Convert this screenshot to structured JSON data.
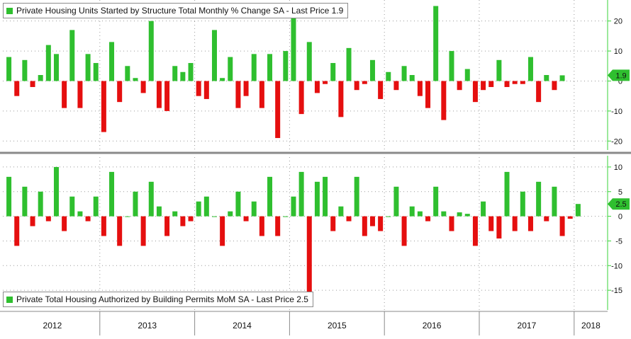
{
  "colors": {
    "positive": "#2fbf2f",
    "negative": "#e50f0f",
    "grid": "#9a9a9a",
    "axis": "#39d339",
    "separator": "#8a8a8a"
  },
  "chart_data": [
    {
      "type": "bar",
      "legend_title": "Private Housing Units Started by Structure Total Monthly % Change SA - Last Price 1.9",
      "last_value_label": "1.9",
      "last_value": 1.9,
      "ylim": [
        -23,
        27
      ],
      "yticks": [
        20,
        10,
        0,
        -10,
        -20
      ],
      "ytick_labels": [
        "20",
        "10",
        "0",
        "-10",
        "-20"
      ],
      "grid": true,
      "legend_position": "top-left",
      "x_start": "2012-01",
      "values": [
        8,
        -5,
        7,
        -2,
        2,
        12,
        9,
        -9,
        17,
        -9,
        9,
        6,
        -17,
        13,
        -7,
        5,
        1,
        -4,
        20,
        -9,
        -10,
        5,
        3,
        6,
        -5,
        -6,
        17,
        1,
        8,
        -9,
        -5,
        9,
        -9,
        9,
        -19,
        10,
        22,
        -11,
        13,
        -4,
        -1,
        6,
        -12,
        11,
        -3,
        -1,
        7,
        -6,
        3,
        -3,
        5,
        2,
        -5,
        -9,
        25,
        -13,
        10,
        -3,
        4,
        -7,
        -3,
        -2,
        7,
        -2,
        -1,
        -1,
        8,
        -7,
        2,
        -3,
        1.9
      ]
    },
    {
      "type": "bar",
      "legend_title": "Private Total Housing Authorized by Building Permits MoM SA - Last Price 2.5",
      "last_value_label": "2.5",
      "last_value": 2.5,
      "ylim": [
        -19,
        12
      ],
      "yticks": [
        10,
        5,
        0,
        -5,
        -10,
        -15
      ],
      "ytick_labels": [
        "10",
        "5",
        "0",
        "-5",
        "-10",
        "-15"
      ],
      "grid": true,
      "legend_position": "bottom-left",
      "x_start": "2012-01",
      "values": [
        8,
        -6,
        6,
        -2,
        5,
        -1,
        10,
        -3,
        4,
        1,
        -1,
        4,
        -4,
        9,
        -6,
        0,
        5,
        -6,
        7,
        2,
        -4,
        1,
        -2,
        -1,
        3,
        4,
        0,
        -6,
        1,
        5,
        -1,
        3,
        -4,
        8,
        -4,
        0,
        4,
        9,
        -18,
        7,
        8,
        -3,
        2,
        -1,
        8,
        -4,
        -2,
        -3,
        0,
        6,
        -6,
        2,
        1,
        -1,
        6,
        1,
        -3,
        0.8,
        0.5,
        -6,
        3,
        -3,
        -4.5,
        9,
        -3,
        5,
        -3,
        7,
        -1,
        6,
        -4,
        -0.5,
        2.5
      ]
    }
  ],
  "x_axis": {
    "years": [
      "2012",
      "2013",
      "2014",
      "2015",
      "2016",
      "2017",
      "2018"
    ]
  }
}
